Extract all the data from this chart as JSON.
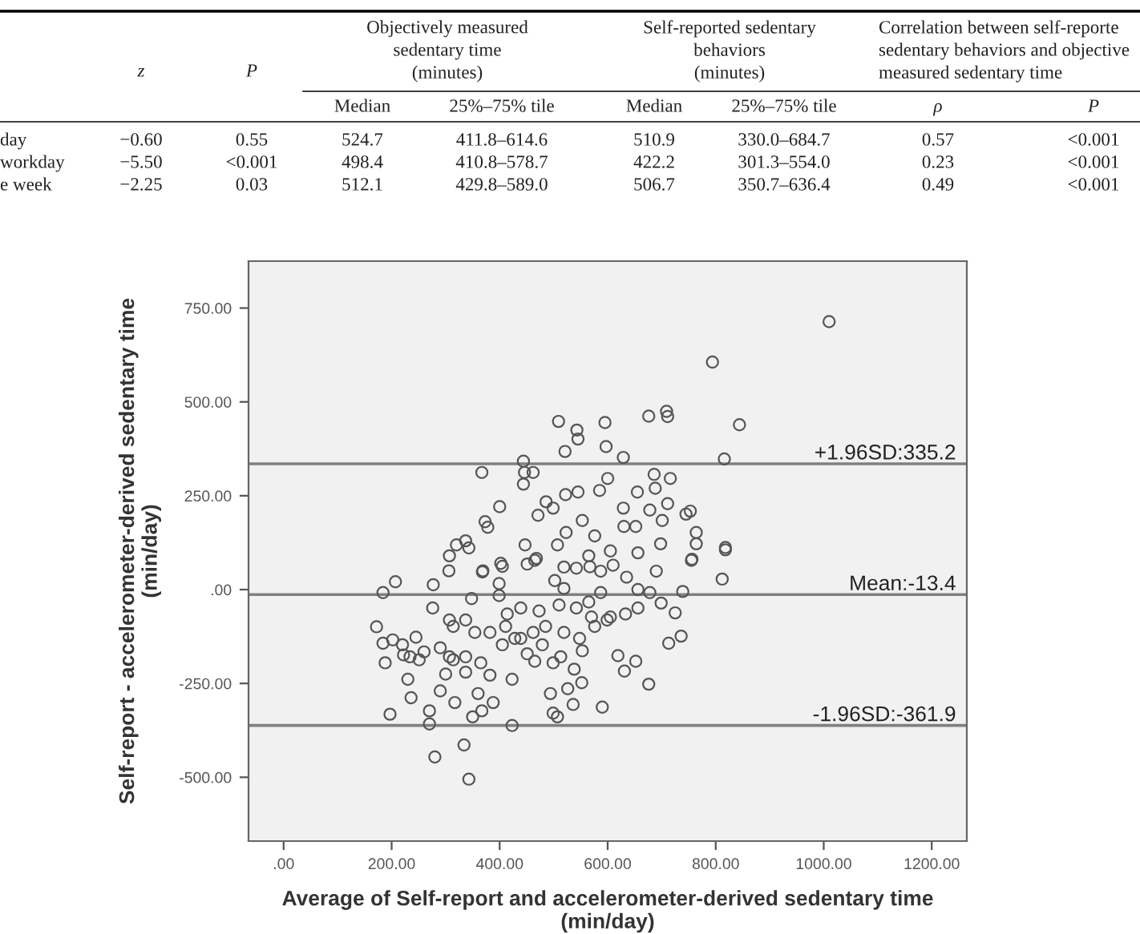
{
  "chart_data": [
    {
      "type": "other",
      "annotations": [
        "z",
        "P",
        "Objectively measured\nsedentary time\n(minutes)",
        "Self-reported sedentary\nbehaviors\n(minutes)",
        "Correlation between self-reporte\nsedentary behaviors and objective\nmeasured sedentary time",
        "Median",
        "25%–75% tile",
        "Median",
        "25%–75% tile",
        "ρ",
        "P",
        "day",
        "−0.60",
        "0.55",
        "524.7",
        "411.8–614.6",
        "510.9",
        "330.0–684.7",
        "0.57",
        "<0.001",
        "workday",
        "−5.50",
        "<0.001",
        "498.4",
        "410.8–578.7",
        "422.2",
        "301.3–554.0",
        "0.23",
        "<0.001",
        "e week",
        "−2.25",
        "0.03",
        "512.1",
        "429.8–589.0",
        "506.7",
        "350.7–636.4",
        "0.49",
        "<0.001"
      ]
    },
    {
      "type": "scatter",
      "xlabel": "Average of Self-report and accelerometer-derived sedentary time\n(min/day)",
      "ylabel": "Self-report - accelerometer-derived sedentary time\n(min/day)",
      "xlim": [
        -65,
        1265
      ],
      "ylim": [
        -670,
        875
      ],
      "xticks": [
        {
          "value": 0,
          "label": ".00"
        },
        {
          "value": 200,
          "label": "200.00"
        },
        {
          "value": 400,
          "label": "400.00"
        },
        {
          "value": 600,
          "label": "600.00"
        },
        {
          "value": 800,
          "label": "800.00"
        },
        {
          "value": 1000,
          "label": "1000.00"
        },
        {
          "value": 1200,
          "label": "1200.00"
        }
      ],
      "yticks": [
        {
          "value": -500,
          "label": "-500.00"
        },
        {
          "value": -250,
          "label": "-250.00"
        },
        {
          "value": 0,
          "label": ".00"
        },
        {
          "value": 250,
          "label": "250.00"
        },
        {
          "value": 500,
          "label": "500.00"
        },
        {
          "value": 750,
          "label": "750.00"
        }
      ],
      "grid": false,
      "legend": false,
      "marker": "circle",
      "ref_lines": [
        {
          "axis": "y",
          "value": 335.2,
          "label": "+1.96SD:335.2",
          "color": "#808080"
        },
        {
          "axis": "y",
          "value": -13.4,
          "label": "Mean:-13.4",
          "color": "#808080"
        },
        {
          "axis": "y",
          "value": -361.9,
          "label": "-1.96SD:-361.9",
          "color": "#808080"
        }
      ],
      "series": [
        {
          "color": "#555555",
          "x": [
            1010,
            794,
            509,
            543,
            545,
            595,
            676,
            709,
            711,
            844,
            521,
            597,
            629,
            816,
            367,
            444,
            446,
            462,
            444,
            600,
            686,
            716,
            688,
            655,
            400,
            522,
            545,
            585,
            629,
            711,
            753,
            745,
            373,
            378,
            320,
            337,
            343,
            307,
            306,
            447,
            471,
            486,
            499,
            523,
            553,
            576,
            630,
            652,
            678,
            701,
            764,
            764,
            756,
            818,
            698,
            605,
            507,
            468,
            402,
            369,
            519,
            567,
            656,
            207,
            184,
            172,
            184,
            188,
            202,
            220,
            222,
            234,
            245,
            251,
            260,
            230,
            236,
            197,
            270,
            270,
            280,
            343,
            277,
            276,
            307,
            290,
            300,
            307,
            317,
            334,
            367,
            350,
            360,
            388,
            423,
            494,
            499,
            507,
            526,
            552,
            536,
            590,
            423,
            465,
            499,
            513,
            538,
            676,
            619,
            631,
            652,
            713,
            736,
            725,
            699,
            739,
            755,
            812,
            818,
            368,
            399,
            405,
            451,
            465,
            502,
            519,
            542,
            565,
            587,
            610,
            635,
            656,
            690,
            348,
            399,
            414,
            439,
            473,
            510,
            542,
            565,
            587,
            605,
            633,
            656,
            678,
            314,
            337,
            354,
            382,
            411,
            439,
            462,
            485,
            519,
            548,
            576,
            599,
            337,
            365,
            405,
            428,
            451,
            479,
            553,
            570,
            382,
            337,
            314,
            290
          ],
          "values": [
            714,
            606,
            448,
            425,
            401,
            445,
            462,
            475,
            461,
            439,
            368,
            381,
            352,
            348,
            312,
            342,
            312,
            312,
            281,
            296,
            307,
            296,
            270,
            260,
            221,
            253,
            260,
            264,
            217,
            229,
            209,
            201,
            181,
            166,
            119,
            130,
            111,
            90,
            50,
            119,
            198,
            234,
            217,
            152,
            184,
            143,
            168,
            168,
            212,
            184,
            152,
            122,
            81,
            112,
            122,
            103,
            119,
            83,
            70,
            50,
            60,
            61,
            98,
            21,
            -8,
            -99,
            -143,
            -195,
            -134,
            -147,
            -174,
            -179,
            -127,
            -187,
            -166,
            -239,
            -288,
            -332,
            -323,
            -358,
            -446,
            -505,
            13,
            -49,
            -81,
            -270,
            -225,
            -179,
            -301,
            -414,
            -323,
            -339,
            -277,
            -301,
            -362,
            -277,
            -329,
            -339,
            -264,
            -248,
            -306,
            -313,
            -239,
            -191,
            -195,
            -179,
            -212,
            -252,
            -176,
            -217,
            -191,
            -143,
            -124,
            -62,
            -36,
            -5,
            78,
            28,
            106,
            47,
            16,
            62,
            68,
            78,
            24,
            3,
            57,
            90,
            49,
            65,
            33,
            0,
            49,
            -24,
            -16,
            -65,
            -49,
            -57,
            -41,
            -49,
            -33,
            -8,
            -73,
            -65,
            -49,
            -8,
            -98,
            -81,
            -114,
            -114,
            -98,
            -130,
            -114,
            -98,
            -114,
            -130,
            -98,
            -81,
            -179,
            -195,
            -147,
            -130,
            -171,
            -147,
            -163,
            -73,
            -228,
            -220,
            -187,
            -155
          ]
        }
      ]
    }
  ]
}
